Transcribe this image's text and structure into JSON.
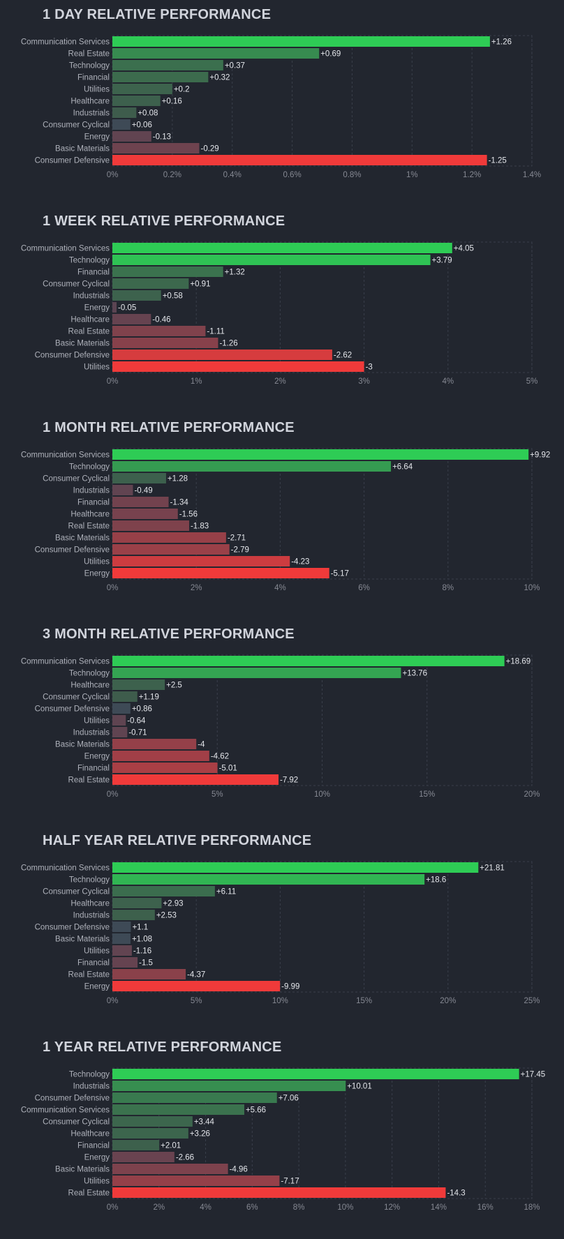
{
  "colors": {
    "pos_strong": "#2ecc55",
    "pos_weak": "#3e5a4c",
    "neg_strong": "#f03a3a",
    "neg_weak": "#5b4452",
    "neutral": "#3e4a56"
  },
  "chart_data": [
    {
      "type": "bar",
      "orientation": "horizontal",
      "title": "1 DAY RELATIVE PERFORMANCE",
      "categories": [
        "Communication Services",
        "Real Estate",
        "Technology",
        "Financial",
        "Utilities",
        "Healthcare",
        "Industrials",
        "Consumer Cyclical",
        "Energy",
        "Basic Materials",
        "Consumer Defensive"
      ],
      "values": [
        1.26,
        0.69,
        0.37,
        0.32,
        0.2,
        0.16,
        0.08,
        0.06,
        -0.13,
        -0.29,
        -1.25
      ],
      "value_labels": [
        "+1.26",
        "+0.69",
        "+0.37",
        "+0.32",
        "+0.2",
        "+0.16",
        "+0.08",
        "+0.06",
        "-0.13",
        "-0.29",
        "-1.25"
      ],
      "xlim": [
        0,
        1.4
      ],
      "ticks": [
        "0%",
        "0.2%",
        "0.4%",
        "0.6%",
        "0.8%",
        "1%",
        "1.2%",
        "1.4%"
      ],
      "tick_values": [
        0,
        0.2,
        0.4,
        0.6,
        0.8,
        1,
        1.2,
        1.4
      ]
    },
    {
      "type": "bar",
      "orientation": "horizontal",
      "title": "1 WEEK RELATIVE PERFORMANCE",
      "categories": [
        "Communication Services",
        "Technology",
        "Financial",
        "Consumer Cyclical",
        "Industrials",
        "Energy",
        "Healthcare",
        "Real Estate",
        "Basic Materials",
        "Consumer Defensive",
        "Utilities"
      ],
      "values": [
        4.05,
        3.79,
        1.32,
        0.91,
        0.58,
        -0.05,
        -0.46,
        -1.11,
        -1.26,
        -2.62,
        -3
      ],
      "value_labels": [
        "+4.05",
        "+3.79",
        "+1.32",
        "+0.91",
        "+0.58",
        "-0.05",
        "-0.46",
        "-1.11",
        "-1.26",
        "-2.62",
        "-3"
      ],
      "xlim": [
        0,
        5
      ],
      "ticks": [
        "0%",
        "1%",
        "2%",
        "3%",
        "4%",
        "5%"
      ],
      "tick_values": [
        0,
        1,
        2,
        3,
        4,
        5
      ]
    },
    {
      "type": "bar",
      "orientation": "horizontal",
      "title": "1 MONTH RELATIVE PERFORMANCE",
      "categories": [
        "Communication Services",
        "Technology",
        "Consumer Cyclical",
        "Industrials",
        "Financial",
        "Healthcare",
        "Real Estate",
        "Basic Materials",
        "Consumer Defensive",
        "Utilities",
        "Energy"
      ],
      "values": [
        9.92,
        6.64,
        1.28,
        -0.49,
        -1.34,
        -1.56,
        -1.83,
        -2.71,
        -2.79,
        -4.23,
        -5.17
      ],
      "value_labels": [
        "+9.92",
        "+6.64",
        "+1.28",
        "-0.49",
        "-1.34",
        "-1.56",
        "-1.83",
        "-2.71",
        "-2.79",
        "-4.23",
        "-5.17"
      ],
      "xlim": [
        0,
        10
      ],
      "ticks": [
        "0%",
        "2%",
        "4%",
        "6%",
        "8%",
        "10%"
      ],
      "tick_values": [
        0,
        2,
        4,
        6,
        8,
        10
      ]
    },
    {
      "type": "bar",
      "orientation": "horizontal",
      "title": "3 MONTH RELATIVE PERFORMANCE",
      "categories": [
        "Communication Services",
        "Technology",
        "Healthcare",
        "Consumer Cyclical",
        "Consumer Defensive",
        "Utilities",
        "Industrials",
        "Basic Materials",
        "Energy",
        "Financial",
        "Real Estate"
      ],
      "values": [
        18.69,
        13.76,
        2.5,
        1.19,
        0.86,
        -0.64,
        -0.71,
        -4,
        -4.62,
        -5.01,
        -7.92
      ],
      "value_labels": [
        "+18.69",
        "+13.76",
        "+2.5",
        "+1.19",
        "+0.86",
        "-0.64",
        "-0.71",
        "-4",
        "-4.62",
        "-5.01",
        "-7.92"
      ],
      "xlim": [
        0,
        20
      ],
      "ticks": [
        "0%",
        "5%",
        "10%",
        "15%",
        "20%"
      ],
      "tick_values": [
        0,
        5,
        10,
        15,
        20
      ]
    },
    {
      "type": "bar",
      "orientation": "horizontal",
      "title": "HALF YEAR RELATIVE PERFORMANCE",
      "categories": [
        "Communication Services",
        "Technology",
        "Consumer Cyclical",
        "Healthcare",
        "Industrials",
        "Consumer Defensive",
        "Basic Materials",
        "Utilities",
        "Financial",
        "Real Estate",
        "Energy"
      ],
      "values": [
        21.81,
        18.6,
        6.11,
        2.93,
        2.53,
        1.1,
        1.08,
        -1.16,
        -1.5,
        -4.37,
        -9.99
      ],
      "value_labels": [
        "+21.81",
        "+18.6",
        "+6.11",
        "+2.93",
        "+2.53",
        "+1.1",
        "+1.08",
        "-1.16",
        "-1.5",
        "-4.37",
        "-9.99"
      ],
      "xlim": [
        0,
        25
      ],
      "ticks": [
        "0%",
        "5%",
        "10%",
        "15%",
        "20%",
        "25%"
      ],
      "tick_values": [
        0,
        5,
        10,
        15,
        20,
        25
      ]
    },
    {
      "type": "bar",
      "orientation": "horizontal",
      "title": "1 YEAR RELATIVE PERFORMANCE",
      "categories": [
        "Technology",
        "Industrials",
        "Consumer Defensive",
        "Communication Services",
        "Consumer Cyclical",
        "Healthcare",
        "Financial",
        "Energy",
        "Basic Materials",
        "Utilities",
        "Real Estate"
      ],
      "values": [
        17.45,
        10.01,
        7.06,
        5.66,
        3.44,
        3.26,
        2.01,
        -2.66,
        -4.96,
        -7.17,
        -14.3
      ],
      "value_labels": [
        "+17.45",
        "+10.01",
        "+7.06",
        "+5.66",
        "+3.44",
        "+3.26",
        "+2.01",
        "-2.66",
        "-4.96",
        "-7.17",
        "-14.3"
      ],
      "xlim": [
        0,
        18
      ],
      "ticks": [
        "0%",
        "2%",
        "4%",
        "6%",
        "8%",
        "10%",
        "12%",
        "14%",
        "16%",
        "18%"
      ],
      "tick_values": [
        0,
        2,
        4,
        6,
        8,
        10,
        12,
        14,
        16,
        18
      ]
    }
  ]
}
